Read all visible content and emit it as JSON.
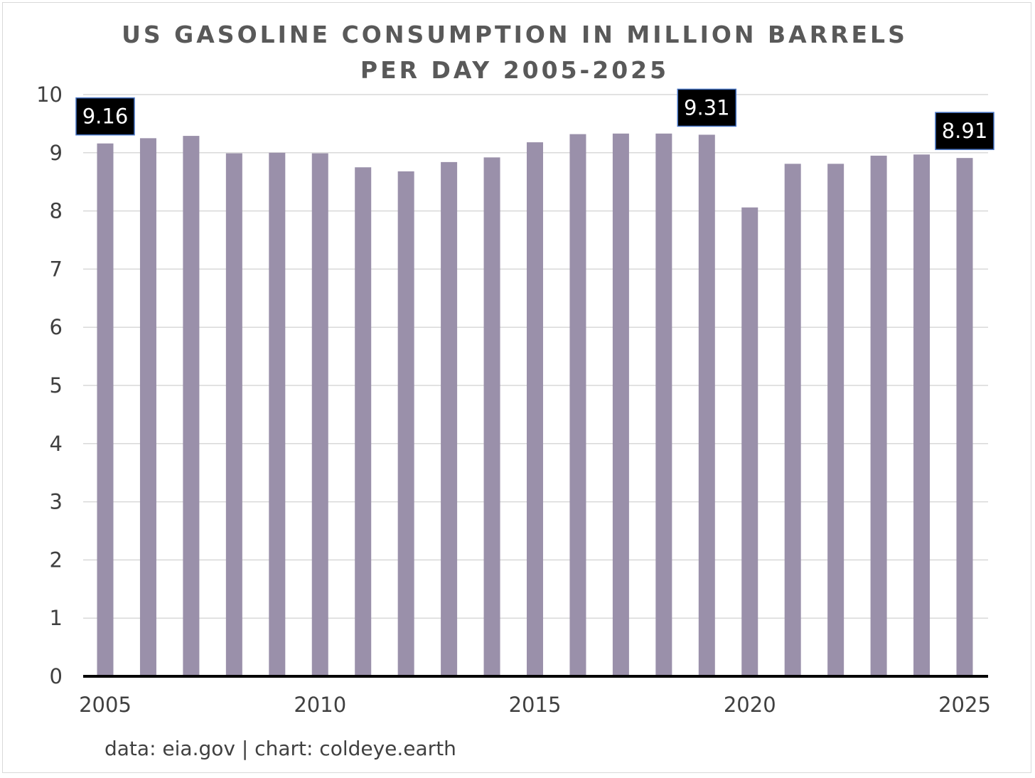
{
  "chart_data": {
    "type": "bar",
    "title_lines": [
      "US GASOLINE CONSUMPTION IN MILLION BARRELS",
      "PER DAY 2005-2025"
    ],
    "categories": [
      "2005",
      "2006",
      "2007",
      "2008",
      "2009",
      "2010",
      "2011",
      "2012",
      "2013",
      "2014",
      "2015",
      "2016",
      "2017",
      "2018",
      "2019",
      "2020",
      "2021",
      "2022",
      "2023",
      "2024",
      "2025"
    ],
    "values": [
      9.16,
      9.25,
      9.29,
      8.99,
      9.0,
      8.99,
      8.75,
      8.68,
      8.84,
      8.92,
      9.18,
      9.32,
      9.33,
      9.33,
      9.31,
      8.06,
      8.81,
      8.81,
      8.95,
      8.97,
      8.91
    ],
    "x_tick_labels": [
      "2005",
      "2010",
      "2015",
      "2020",
      "2025"
    ],
    "y_tick_labels": [
      "0",
      "1",
      "2",
      "3",
      "4",
      "5",
      "6",
      "7",
      "8",
      "9",
      "10"
    ],
    "ylim": [
      0,
      10
    ],
    "grid": true,
    "bar_color": "#9a90aa",
    "data_labels": [
      {
        "category": "2005",
        "text": "9.16"
      },
      {
        "category": "2019",
        "text": "9.31"
      },
      {
        "category": "2025",
        "text": "8.91"
      }
    ],
    "label_bg_color": "#000000",
    "label_border_color": "#4472c4",
    "credit": "data: eia.gov | chart: coldeye.earth"
  }
}
